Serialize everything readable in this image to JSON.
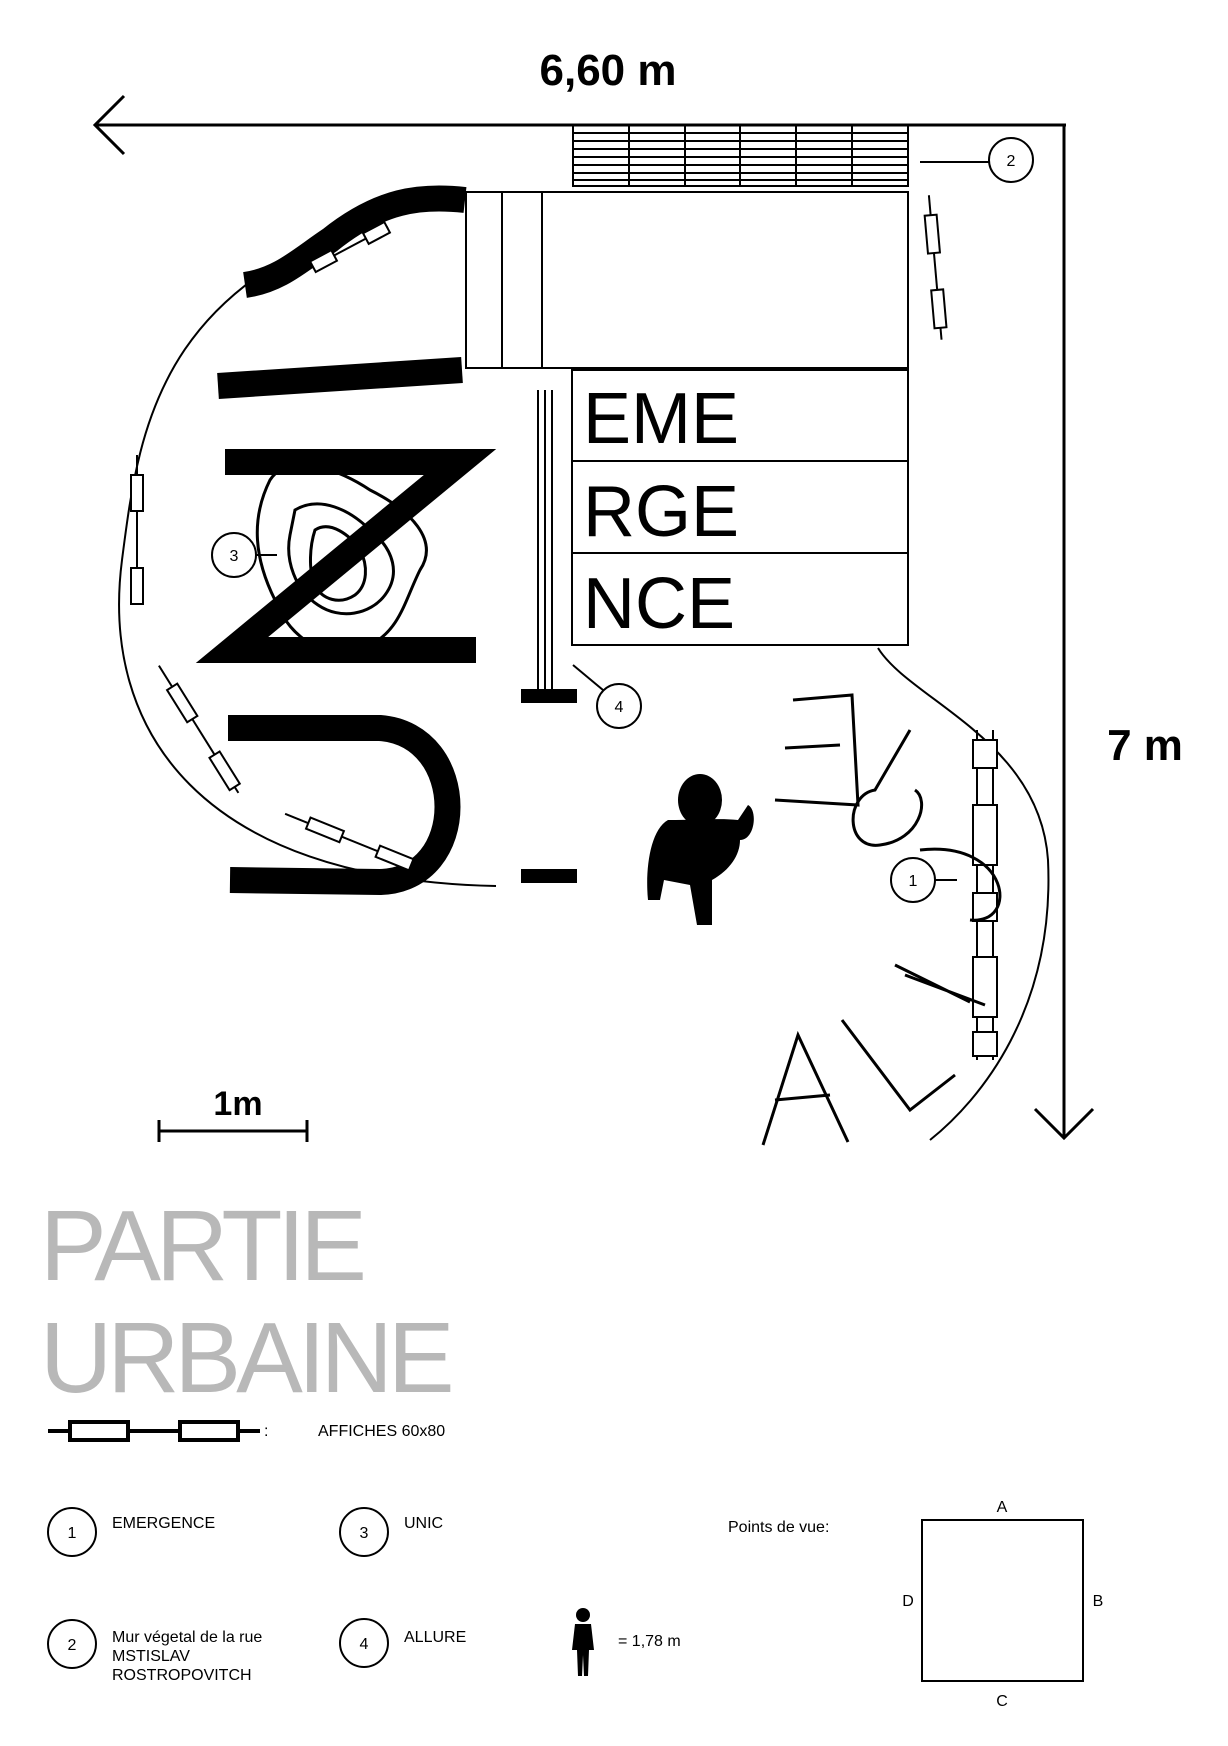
{
  "dimensions": {
    "width_label": "6,60 m",
    "height_label": "7 m",
    "scale_label": "1m"
  },
  "plan_text": {
    "emergence_rows": [
      "EME",
      "RGE",
      "NCE"
    ],
    "unic_letters": "UNIC",
    "allure_letters": "ALLURE"
  },
  "callouts": [
    "1",
    "2",
    "3",
    "4"
  ],
  "title": {
    "line1": "PARTIE",
    "line2": "URBAINE"
  },
  "legend": {
    "posters_label": "AFFICHES 60x80",
    "posters_colon": ":",
    "items": [
      {
        "num": "1",
        "label": "EMERGENCE"
      },
      {
        "num": "2",
        "label_lines": [
          "Mur végetal de la rue",
          "MSTISLAV",
          "ROSTROPOVITCH"
        ]
      },
      {
        "num": "3",
        "label": "UNIC"
      },
      {
        "num": "4",
        "label": "ALLURE"
      }
    ],
    "person_scale": "= 1,78 m"
  },
  "viewpoints": {
    "label": "Points de vue:",
    "A": "A",
    "B": "B",
    "C": "C",
    "D": "D"
  },
  "colors": {
    "ink": "#000000",
    "title": "#b8b8b8",
    "paper": "#ffffff"
  },
  "icons": [
    "arrow-left-icon",
    "arrow-down-icon",
    "person-topview-icon",
    "person-standing-icon",
    "poster-panel-icon"
  ]
}
